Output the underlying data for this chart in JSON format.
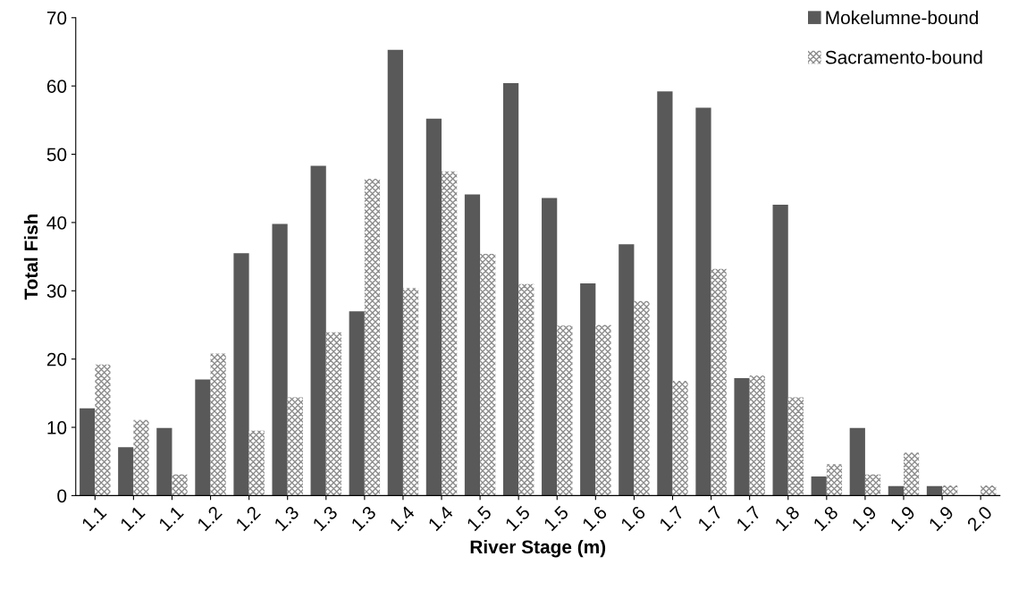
{
  "chart_data": {
    "type": "bar",
    "xlabel": "River Stage (m)",
    "ylabel": "Total Fish",
    "categories": [
      "1.1",
      "1.1",
      "1.1",
      "1.2",
      "1.2",
      "1.3",
      "1.3",
      "1.3",
      "1.4",
      "1.4",
      "1.5",
      "1.5",
      "1.5",
      "1.6",
      "1.6",
      "1.7",
      "1.7",
      "1.7",
      "1.8",
      "1.8",
      "1.9",
      "1.9",
      "1.9",
      "2.0"
    ],
    "series": [
      {
        "name": "Mokelumne-bound",
        "color": "#595959",
        "values": [
          12.8,
          7.1,
          9.9,
          17.0,
          35.5,
          39.8,
          48.3,
          27.0,
          65.3,
          55.2,
          44.1,
          60.4,
          43.6,
          31.1,
          36.8,
          59.2,
          56.8,
          17.2,
          42.6,
          2.8,
          9.9,
          1.4,
          1.4,
          0
        ]
      },
      {
        "name": "Sacramento-bound",
        "color": "#8c8c8c",
        "values": [
          19.2,
          11.1,
          3.1,
          20.8,
          9.5,
          14.4,
          23.9,
          46.4,
          30.4,
          47.5,
          35.4,
          31.0,
          24.9,
          25.0,
          28.5,
          16.8,
          33.2,
          17.6,
          14.4,
          4.6,
          3.1,
          6.3,
          1.5,
          1.5
        ]
      }
    ],
    "ylim": [
      0,
      70
    ],
    "yticks": [
      0,
      10,
      20,
      30,
      40,
      50,
      60,
      70
    ],
    "grid": false,
    "legend": "top right"
  }
}
